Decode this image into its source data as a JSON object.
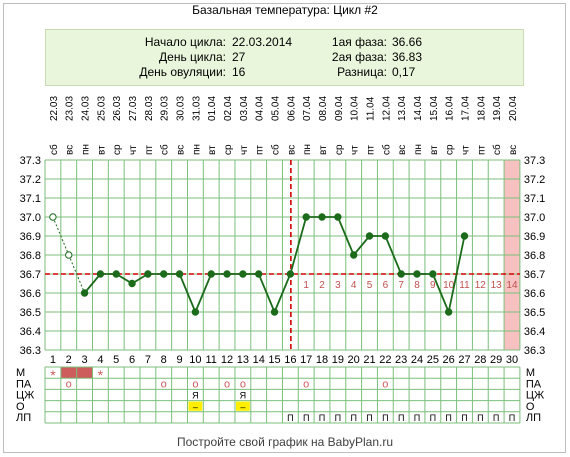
{
  "title": "Базальная температура: Цикл #2",
  "info": {
    "cycle_start_label": "Начало цикла:",
    "cycle_start_value": "22.03.2014",
    "cycle_day_label": "День цикла:",
    "cycle_day_value": "27",
    "ovulation_day_label": "День овуляции:",
    "ovulation_day_value": "16",
    "phase1_label": "1ая фаза:",
    "phase1_value": "36.66",
    "phase2_label": "2ая фаза:",
    "phase2_value": "36.83",
    "difference_label": "Разница:",
    "difference_value": "0,17"
  },
  "colors": {
    "line": "#1b6b1b",
    "coverline": "#d40000",
    "ovulation_line": "#d40000",
    "grid": "#7bbf7b",
    "phase_numbers": "#c0504d",
    "highlight_column": "#f7c1c1",
    "menses": "#cd5c5c",
    "note_yellow": "#ffee00"
  },
  "chart_data": {
    "type": "line",
    "title": "Базальная температура: Цикл #2",
    "x": [
      1,
      2,
      3,
      4,
      5,
      6,
      7,
      8,
      9,
      10,
      11,
      12,
      13,
      14,
      15,
      16,
      17,
      18,
      19,
      20,
      21,
      22,
      23,
      24,
      25,
      26,
      27,
      28,
      29,
      30
    ],
    "dates": [
      "22.03",
      "23.03",
      "24.03",
      "25.03",
      "26.03",
      "27.03",
      "28.03",
      "29.03",
      "30.03",
      "31.03",
      "01.04",
      "02.04",
      "03.04",
      "04.04",
      "05.04",
      "06.04",
      "07.04",
      "08.04",
      "09.04",
      "10.04",
      "11.04",
      "12.04",
      "13.04",
      "14.04",
      "15.04",
      "16.04",
      "17.04",
      "18.04",
      "19.04",
      "20.04"
    ],
    "weekdays": [
      "сб",
      "вс",
      "пн",
      "вт",
      "ср",
      "чт",
      "пт",
      "сб",
      "вс",
      "пн",
      "вт",
      "ср",
      "чт",
      "пт",
      "сб",
      "вс",
      "пн",
      "вт",
      "ср",
      "чт",
      "пт",
      "сб",
      "вс",
      "пн",
      "вт",
      "ср",
      "чт",
      "пт",
      "сб",
      "вс"
    ],
    "series": [
      {
        "values": [
          37.0,
          36.8,
          36.6,
          36.7,
          36.7,
          36.65,
          36.7,
          36.7,
          36.7,
          36.5,
          36.7,
          36.7,
          36.7,
          36.7,
          36.5,
          36.7,
          37.0,
          37.0,
          37.0,
          36.8,
          36.9,
          36.9,
          36.7,
          36.7,
          36.7,
          36.5,
          36.9,
          null,
          null,
          null
        ]
      }
    ],
    "excluded_points_days": [
      1,
      2
    ],
    "ylim": [
      36.3,
      37.3
    ],
    "yticks": [
      "36.3",
      "36.4",
      "36.5",
      "36.6",
      "36.7",
      "36.8",
      "36.9",
      "37.0",
      "37.1",
      "37.2",
      "37.3"
    ],
    "coverline": 36.7,
    "ovulation_day": 16,
    "phase_day_numbers": [
      "1",
      "2",
      "3",
      "4",
      "5",
      "6",
      "7",
      "8",
      "9",
      "10",
      "11",
      "12",
      "13",
      "14"
    ],
    "highlight_day": 30,
    "moon_day": 6,
    "grid": true
  },
  "table": {
    "row_labels": [
      "М",
      "ПА",
      "ЦЖ",
      "О",
      "ЛП"
    ],
    "menses_fill_days": [
      2,
      3
    ],
    "menses_star_days": [
      1,
      4
    ],
    "menses_star_char": "*",
    "pa_circle_days": [
      2,
      8,
      10,
      12,
      13,
      17,
      22
    ],
    "pa_circle_char": "о",
    "cm_days": [
      10,
      13
    ],
    "cm_char": "Я",
    "o_days": [
      10,
      13
    ],
    "o_char": "–",
    "lp_days": [
      16,
      17,
      18,
      19,
      20,
      21,
      22,
      23,
      24,
      25,
      26,
      27,
      28,
      29,
      30
    ],
    "lp_char": "П"
  },
  "footer": "Постройте свой график на BabyPlan.ru"
}
